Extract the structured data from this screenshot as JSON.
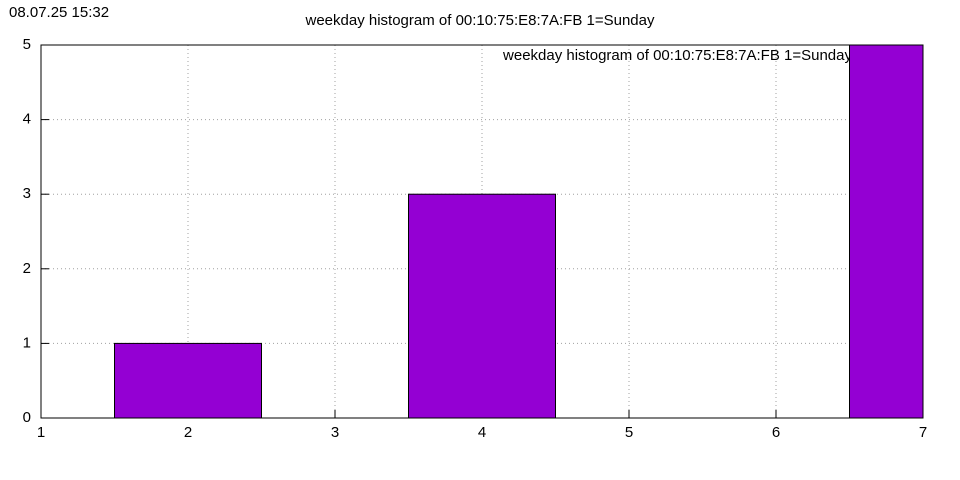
{
  "chart_data": {
    "type": "bar",
    "timestamp": "08.07.25 15:32",
    "title": "weekday histogram of 00:10:75:E8:7A:FB 1=Sunday",
    "x": [
      2,
      4,
      7
    ],
    "series": [
      {
        "name": "weekday histogram of 00:10:75:E8:7A:FB 1=Sunday",
        "color": "#9400d3",
        "values": [
          1,
          3,
          5
        ]
      }
    ],
    "xlim": [
      1,
      7
    ],
    "xticks": [
      1,
      2,
      3,
      4,
      5,
      6,
      7
    ],
    "ylim": [
      0,
      5
    ],
    "yticks": [
      0,
      1,
      2,
      3,
      4,
      5
    ],
    "grid": true,
    "legend": "top-right"
  }
}
